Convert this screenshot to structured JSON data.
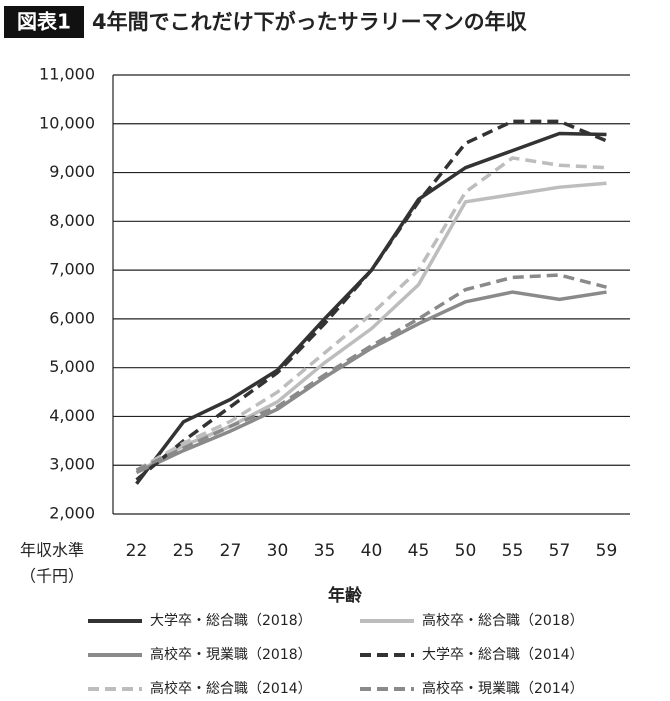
{
  "chart_data": {
    "type": "line",
    "figure_label": "図表1",
    "title": "4年間でこれだけ下がったサラリーマンの年収",
    "y_label": [
      "年収水準",
      "（千円）"
    ],
    "x_label": "年齢",
    "categories": [
      "22",
      "25",
      "27",
      "30",
      "35",
      "40",
      "45",
      "50",
      "55",
      "57",
      "59"
    ],
    "ylim": [
      2000,
      11000
    ],
    "yticks": [
      {
        "value": 2000,
        "label": "2,000"
      },
      {
        "value": 3000,
        "label": "3,000"
      },
      {
        "value": 4000,
        "label": "4,000"
      },
      {
        "value": 5000,
        "label": "5,000"
      },
      {
        "value": 6000,
        "label": "6,000"
      },
      {
        "value": 7000,
        "label": "7,000"
      },
      {
        "value": 8000,
        "label": "8,000"
      },
      {
        "value": 9000,
        "label": "9,000"
      },
      {
        "value": 10000,
        "label": "10,000"
      },
      {
        "value": 11000,
        "label": "11,000"
      }
    ],
    "grid": true,
    "series": [
      {
        "name": "大学卒・総合職（2018）",
        "color": "#333333",
        "dashed": false,
        "values": [
          2620,
          3890,
          4350,
          4950,
          6000,
          7000,
          8450,
          9100,
          9450,
          9800,
          9780
        ]
      },
      {
        "name": "高校卒・総合職（2018）",
        "color": "#bdbdbd",
        "dashed": false,
        "values": [
          2850,
          3400,
          3800,
          4300,
          5100,
          5800,
          6700,
          8400,
          8550,
          8700,
          8780
        ]
      },
      {
        "name": "高校卒・現業職（2018）",
        "color": "#8a8a8a",
        "dashed": false,
        "values": [
          2850,
          3300,
          3700,
          4150,
          4800,
          5400,
          5900,
          6350,
          6550,
          6400,
          6550
        ]
      },
      {
        "name": "大学卒・総合職（2014）",
        "color": "#333333",
        "dashed": true,
        "values": [
          2700,
          3500,
          4200,
          4900,
          5900,
          7000,
          8400,
          9600,
          10050,
          10050,
          9650
        ]
      },
      {
        "name": "高校卒・総合職（2014）",
        "color": "#bdbdbd",
        "dashed": true,
        "values": [
          2900,
          3450,
          3900,
          4500,
          5300,
          6100,
          7000,
          8600,
          9300,
          9150,
          9100
        ]
      },
      {
        "name": "高校卒・現業職（2014）",
        "color": "#8a8a8a",
        "dashed": true,
        "values": [
          2900,
          3350,
          3800,
          4200,
          4850,
          5450,
          6000,
          6600,
          6850,
          6900,
          6650
        ]
      }
    ]
  }
}
